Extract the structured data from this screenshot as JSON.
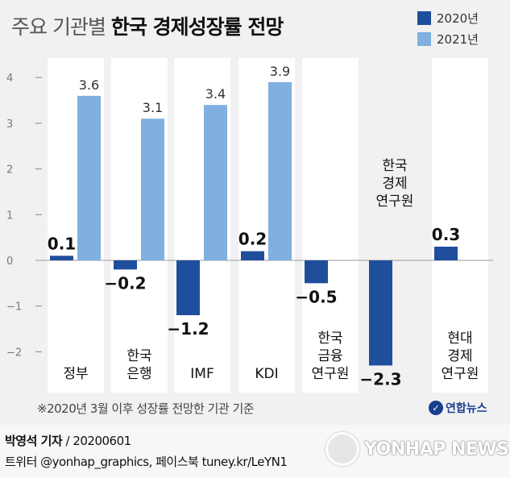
{
  "header": {
    "title_prefix": "주요 기관별",
    "title_main": "한국 경제성장률 전망"
  },
  "colors": {
    "series_2020": "#1f4e9c",
    "series_2021": "#7fb0e0",
    "panel": "#ffffff",
    "background": "#f1f1f1"
  },
  "chart_data": {
    "type": "bar",
    "title": "주요 기관별 한국 경제성장률 전망",
    "categories": [
      "정부",
      "한국\n은행",
      "IMF",
      "KDI",
      "한국\n금융\n연구원",
      "한국\n경제\n연구원",
      "현대\n경제\n연구원"
    ],
    "series": [
      {
        "name": "2020년",
        "values": [
          0.1,
          -0.2,
          -1.2,
          0.2,
          -0.5,
          -2.3,
          0.3
        ]
      },
      {
        "name": "2021년",
        "values": [
          3.6,
          3.1,
          3.4,
          3.9,
          null,
          null,
          null
        ]
      }
    ],
    "value_labels_2020": [
      "0.1",
      "−0.2",
      "−1.2",
      "0.2",
      "−0.5",
      "−2.3",
      "0.3"
    ],
    "value_labels_2021": [
      "3.6",
      "3.1",
      "3.4",
      "3.9",
      "",
      "",
      ""
    ],
    "yticks": [
      4,
      3,
      2,
      1,
      0,
      -1,
      -2
    ],
    "ytick_labels": [
      "4",
      "3",
      "2",
      "1",
      "0",
      "−1",
      "−2"
    ],
    "ylim": [
      -2.3,
      4.5
    ],
    "grid": false,
    "legend_position": "top-right",
    "category_label_position": [
      "bottom",
      "bottom",
      "bottom",
      "bottom",
      "bottom",
      "top",
      "bottom"
    ]
  },
  "footnote": "※2020년 3월 이후 성장률 전망한 기관 기준",
  "logo_text": "연합뉴스",
  "credit": {
    "author": "박영석 기자",
    "date": "/ 20200601",
    "social": "트위터 @yonhap_graphics, 페이스북 tuney.kr/LeYN1"
  },
  "watermark": "YONHAP NEWS"
}
